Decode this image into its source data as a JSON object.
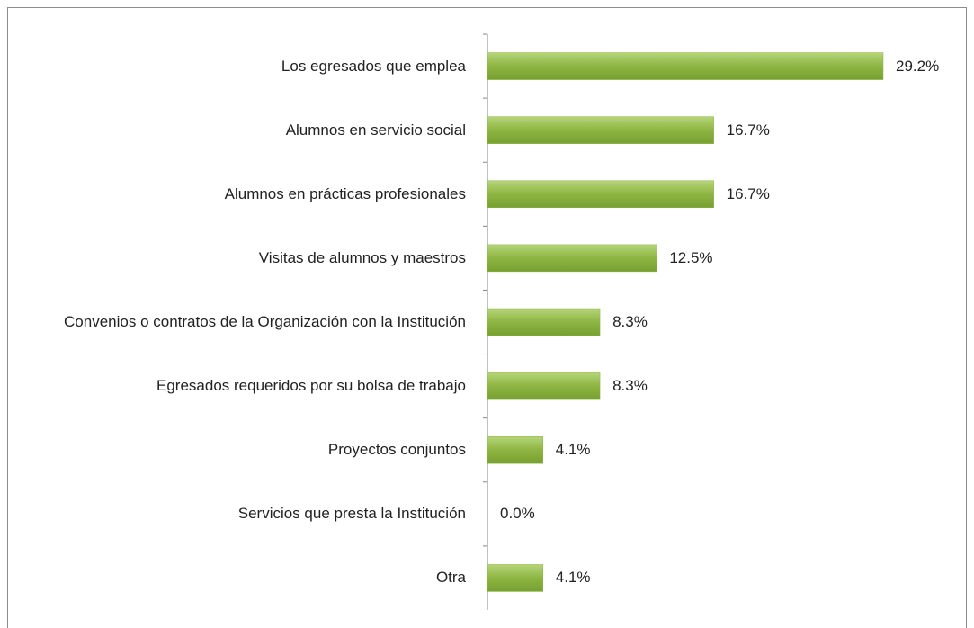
{
  "chart_data": {
    "type": "hbar",
    "categories": [
      "Los egresados que emplea",
      "Alumnos en servicio social",
      "Alumnos en prácticas profesionales",
      "Visitas de alumnos y maestros",
      "Convenios o contratos de la Organización con la Institución",
      "Egresados requeridos por su bolsa de trabajo",
      "Proyectos conjuntos",
      "Servicios que presta la Institución",
      "Otra"
    ],
    "values": [
      29.2,
      16.7,
      16.7,
      12.5,
      8.3,
      8.3,
      4.1,
      0.0,
      4.1
    ],
    "value_labels": [
      "29.2%",
      "16.7%",
      "16.7%",
      "12.5%",
      "8.3%",
      "8.3%",
      "4.1%",
      "0.0%",
      "4.1%"
    ],
    "color": "#8db542"
  }
}
